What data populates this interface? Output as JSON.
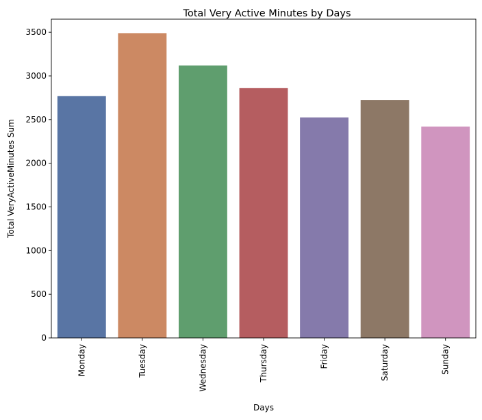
{
  "chart_data": {
    "type": "bar",
    "title": "Total Very Active Minutes by Days",
    "xlabel": "Days",
    "ylabel": "Total VeryActiveMinutes Sum",
    "categories": [
      "Monday",
      "Tuesday",
      "Wednesday",
      "Thursday",
      "Friday",
      "Saturday",
      "Sunday"
    ],
    "values": [
      2770,
      3490,
      3120,
      2860,
      2525,
      2725,
      2420
    ],
    "colors": [
      "#5975a4",
      "#cc8963",
      "#5f9e6e",
      "#b55d60",
      "#857aab",
      "#8d7866",
      "#d095bf"
    ],
    "ylim": [
      0,
      3650
    ],
    "yticks": [
      0,
      500,
      1000,
      1500,
      2000,
      2500,
      3000,
      3500
    ],
    "grid": false,
    "legend": "none"
  }
}
